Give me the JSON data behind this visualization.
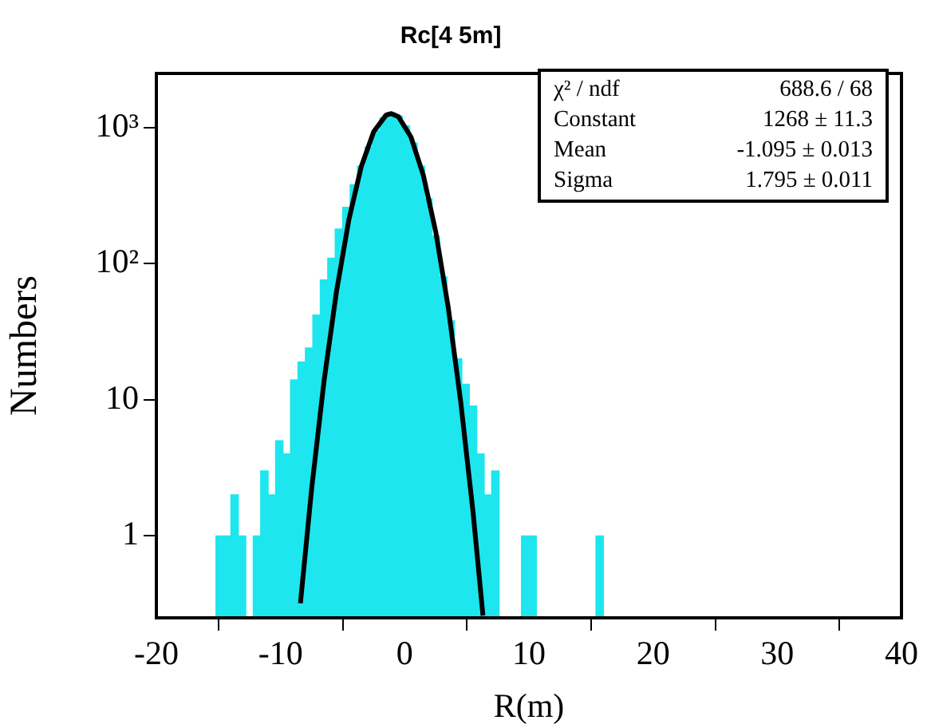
{
  "chart_data": {
    "type": "histogram",
    "title": "Rc[4 5m]",
    "xlabel": "R(m)",
    "ylabel": "Numbers",
    "log": "y",
    "xlim": [
      -20,
      40
    ],
    "xticks": [
      -20,
      -10,
      0,
      10,
      20,
      30,
      40
    ],
    "ylim": [
      0.25,
      2500
    ],
    "yticks": [
      1,
      10,
      {
        "value": 100,
        "label": "10²"
      },
      {
        "value": 1000,
        "label": "10³"
      }
    ],
    "color": "#1ee6ee",
    "bins": [
      -15.2,
      -14.6,
      -14.0,
      -13.4,
      -12.8,
      -12.2,
      -11.6,
      -11.0,
      -10.4,
      -9.8,
      -9.2,
      -8.6,
      -8.0,
      -7.4,
      -6.8,
      -6.2,
      -5.6,
      -5.0,
      -4.4,
      -3.8,
      -3.2,
      -2.6,
      -2.0,
      -1.4,
      -0.8,
      -0.2,
      0.4,
      1.0,
      1.6,
      2.2,
      2.8,
      3.4,
      4.0,
      4.6,
      5.2,
      5.8,
      6.4,
      7.0,
      7.6,
      8.2,
      8.8,
      9.4,
      10.0,
      10.6,
      11.2,
      11.8,
      12.4,
      13.0,
      13.6,
      14.2,
      14.8,
      15.4,
      16.0
    ],
    "values": [
      1,
      1,
      2,
      1,
      null,
      1,
      3,
      2,
      5,
      4,
      14,
      19,
      24,
      42,
      76,
      110,
      180,
      260,
      380,
      520,
      720,
      950,
      1180,
      1290,
      1220,
      1030,
      770,
      520,
      300,
      160,
      80,
      38,
      20,
      13,
      9,
      4,
      2,
      3,
      null,
      null,
      null,
      1,
      1,
      null,
      null,
      null,
      null,
      null,
      null,
      null,
      null,
      1
    ],
    "series": [
      {
        "type": "line",
        "color": "#000000",
        "x": [
          -8.4,
          -7.5,
          -6.5,
          -5.5,
          -4.5,
          -3.5,
          -2.5,
          -1.5,
          -1.1,
          -0.5,
          0.5,
          1.5,
          2.5,
          3.5,
          4.5,
          5.5,
          6.3
        ],
        "values": [
          0.32,
          2.2,
          13.7,
          62,
          210,
          517,
          933,
          1236,
          1268,
          1200,
          854,
          446,
          171,
          48,
          9.8,
          1.5,
          0.26
        ]
      }
    ],
    "annotations": [
      "χ² / ndf",
      "688.6 / 68",
      "Constant",
      "1268 ± 11.3",
      "Mean",
      "-1.095 ± 0.013",
      "Sigma",
      "1.795 ± 0.011"
    ]
  }
}
